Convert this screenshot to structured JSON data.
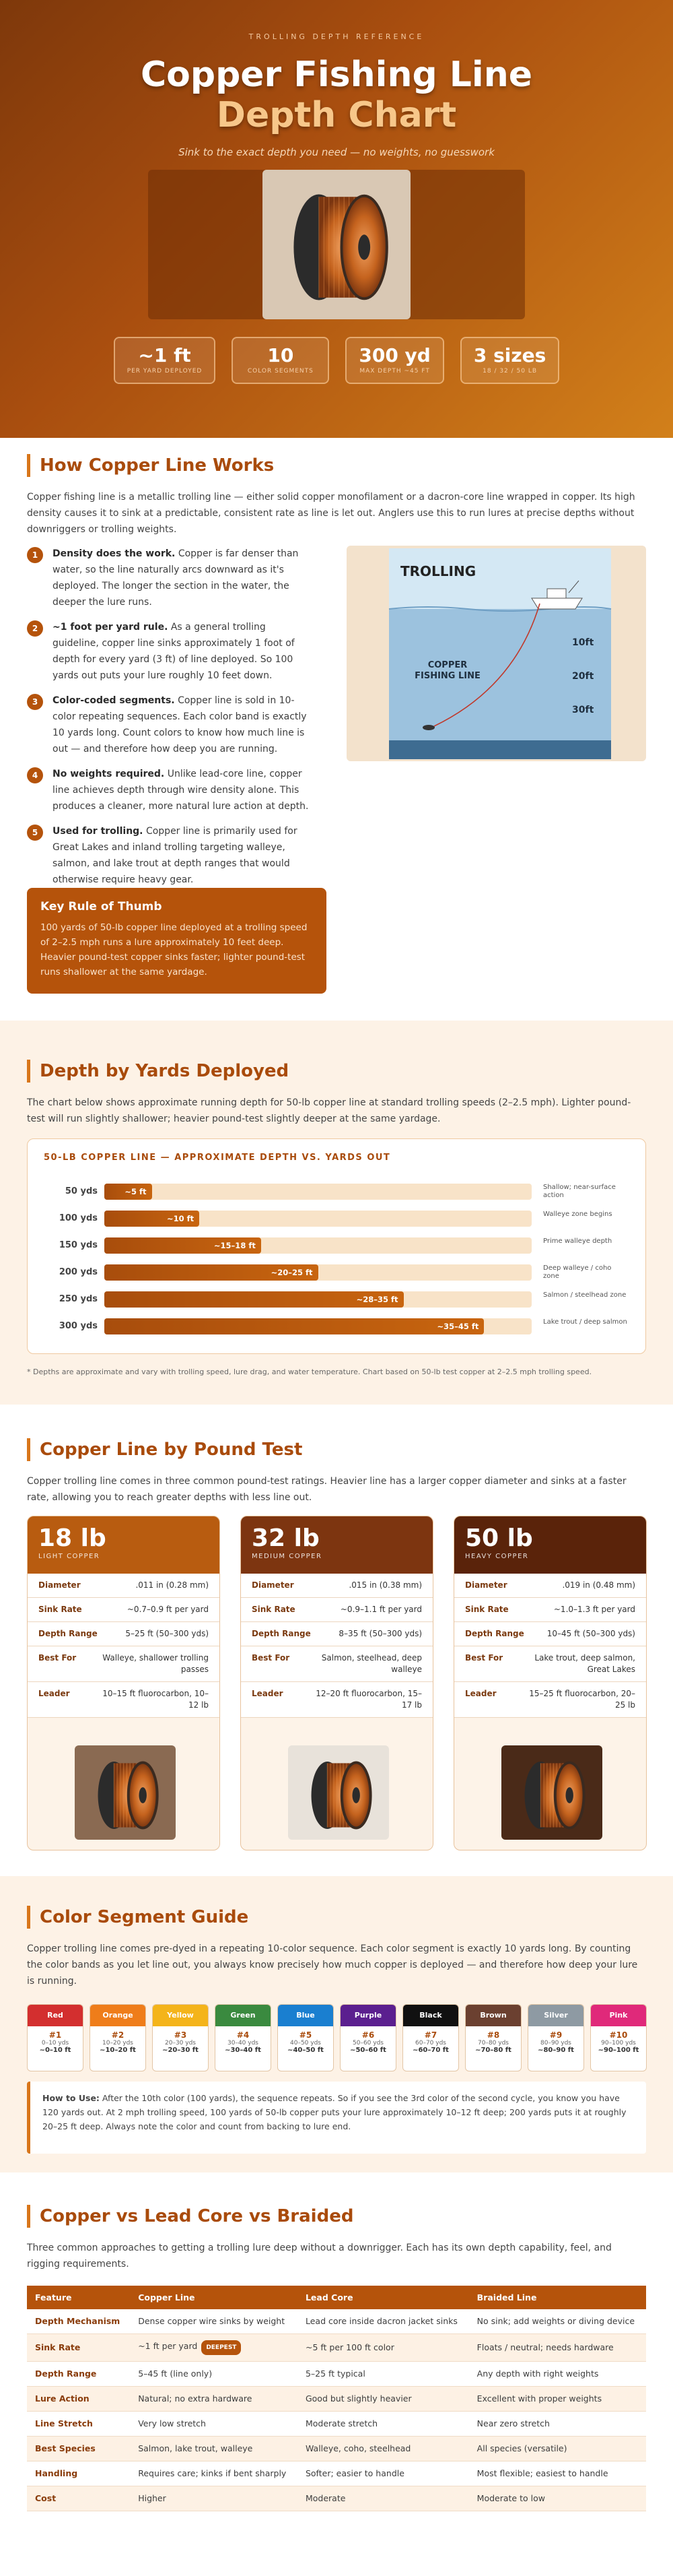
{
  "hero": {
    "eyebrow": "TROLLING DEPTH REFERENCE",
    "title_line1": "Copper Fishing Line",
    "title_line2": "Depth Chart",
    "tagline": "Sink to the exact depth you need — no weights, no guesswork",
    "stats": [
      {
        "value": "~1 ft",
        "label": "PER YARD DEPLOYED"
      },
      {
        "value": "10",
        "label": "COLOR SEGMENTS"
      },
      {
        "value": "300 yd",
        "label": "MAX DEPTH ~45 FT"
      },
      {
        "value": "3 sizes",
        "label": "18 / 32 / 50 LB"
      }
    ]
  },
  "how": {
    "title": "How Copper Line Works",
    "intro": "Copper fishing line is a metallic trolling line — either solid copper monofilament or a dacron-core line wrapped in copper. Its high density causes it to sink at a predictable, consistent rate as line is let out. Anglers use this to run lures at precise depths without downriggers or trolling weights.",
    "steps": [
      {
        "number": 1,
        "bold": "Density does the work.",
        "text": "Copper is far denser than water, so the line naturally arcs downward as it's deployed. The longer the section in the water, the deeper the lure runs."
      },
      {
        "number": 2,
        "bold": "~1 foot per yard rule.",
        "text": "As a general trolling guideline, copper line sinks approximately 1 foot of depth for every yard (3 ft) of line deployed. So 100 yards out puts your lure roughly 10 feet down."
      },
      {
        "number": 3,
        "bold": "Color-coded segments.",
        "text": "Copper line is sold in 10-color repeating sequences. Each color band is exactly 10 yards long. Count colors to know how much line is out — and therefore how deep you are running."
      },
      {
        "number": 4,
        "bold": "No weights required.",
        "text": "Unlike lead-core line, copper line achieves depth through wire density alone. This produces a cleaner, more natural lure action at depth."
      },
      {
        "number": 5,
        "bold": "Used for trolling.",
        "text": "Copper line is primarily used for Great Lakes and inland trolling targeting walleye, salmon, and lake trout at depth ranges that would otherwise require heavy gear."
      }
    ],
    "rule_title": "Key Rule of Thumb",
    "rule_text": "100 yards of 50-lb copper line deployed at a trolling speed of 2–2.5 mph runs a lure approximately 10 feet deep. Heavier pound-test copper sinks faster; lighter pound-test runs shallower at the same yardage.",
    "diagram": {
      "title": "TROLLING",
      "line_label": "COPPER FISHING LINE",
      "depths": [
        "10ft",
        "20ft",
        "30ft"
      ]
    }
  },
  "depth": {
    "title": "Depth by Yards Deployed",
    "intro": "The chart below shows approximate running depth for 50-lb copper line at standard trolling speeds (2–2.5 mph). Lighter pound-test will run slightly shallower; heavier pound-test slightly deeper at the same yardage.",
    "footnote": "* Depths are approximate and vary with trolling speed, lure drag, and water temperature. Chart based on 50-lb test copper at 2–2.5 mph trolling speed.",
    "chart_data": {
      "type": "bar",
      "title": "50-LB COPPER LINE — APPROXIMATE DEPTH VS. YARDS OUT",
      "categories": [
        "50 yds",
        "100 yds",
        "150 yds",
        "200 yds",
        "250 yds",
        "300 yds"
      ],
      "values": [
        5,
        10,
        16.5,
        22.5,
        31.5,
        40
      ],
      "value_labels": [
        "~5 ft",
        "~10 ft",
        "~15–18 ft",
        "~20–25 ft",
        "~28–35 ft",
        "~35–45 ft"
      ],
      "notes": [
        "Shallow; near-surface action",
        "Walleye zone begins",
        "Prime walleye depth",
        "Deep walleye / coho zone",
        "Salmon / steelhead zone",
        "Lake trout / deep salmon"
      ],
      "xlim": [
        0,
        45
      ],
      "color": "#c8650f"
    }
  },
  "pound_test": {
    "title": "Copper Line by Pound Test",
    "intro": "Copper trolling line comes in three common pound-test ratings. Heavier line has a larger copper diameter and sinks at a faster rate, allowing you to reach greater depths with less line out.",
    "row_labels": [
      "Diameter",
      "Sink Rate",
      "Depth Range",
      "Best For",
      "Leader"
    ],
    "cards": [
      {
        "weight": "18 lb",
        "grade": "LIGHT COPPER",
        "color": "#b85c10",
        "rows": [
          ".011 in (0.28 mm)",
          "~0.7–0.9 ft per yard",
          "5–25 ft (50–300 yds)",
          "Walleye, shallower trolling passes",
          "10–15 ft fluorocarbon, 10–12 lb"
        ]
      },
      {
        "weight": "32 lb",
        "grade": "MEDIUM COPPER",
        "color": "#7d3510",
        "rows": [
          ".015 in (0.38 mm)",
          "~0.9–1.1 ft per yard",
          "8–35 ft (50–300 yds)",
          "Salmon, steelhead, deep walleye",
          "12–20 ft fluorocarbon, 15–17 lb"
        ]
      },
      {
        "weight": "50 lb",
        "grade": "HEAVY COPPER",
        "color": "#5a230a",
        "rows": [
          ".019 in (0.48 mm)",
          "~1.0–1.3 ft per yard",
          "10–45 ft (50–300 yds)",
          "Lake trout, deep salmon, Great Lakes",
          "15–25 ft fluorocarbon, 20–25 lb"
        ]
      }
    ]
  },
  "colors": {
    "title": "Color Segment Guide",
    "intro": "Copper trolling line comes pre-dyed in a repeating 10-color sequence. Each color segment is exactly 10 yards long. By counting the color bands as you let line out, you always know precisely how much copper is deployed — and therefore how deep your lure is running.",
    "segments": [
      {
        "name": "Red",
        "color": "#d32f2f",
        "index": "#1",
        "yards": "0–10 yds",
        "depth": "~0–10 ft"
      },
      {
        "name": "Orange",
        "color": "#ef7d1a",
        "index": "#2",
        "yards": "10–20 yds",
        "depth": "~10–20 ft"
      },
      {
        "name": "Yellow",
        "color": "#f4b41a",
        "index": "#3",
        "yards": "20–30 yds",
        "depth": "~20–30 ft"
      },
      {
        "name": "Green",
        "color": "#3a8a3f",
        "index": "#4",
        "yards": "30–40 yds",
        "depth": "~30–40 ft"
      },
      {
        "name": "Blue",
        "color": "#1a7fd0",
        "index": "#5",
        "yards": "40–50 yds",
        "depth": "~40–50 ft"
      },
      {
        "name": "Purple",
        "color": "#5b1f8f",
        "index": "#6",
        "yards": "50–60 yds",
        "depth": "~50–60 ft"
      },
      {
        "name": "Black",
        "color": "#111111",
        "index": "#7",
        "yards": "60–70 yds",
        "depth": "~60–70 ft"
      },
      {
        "name": "Brown",
        "color": "#6b4030",
        "index": "#8",
        "yards": "70–80 yds",
        "depth": "~70–80 ft"
      },
      {
        "name": "Silver",
        "color": "#8e9aa3",
        "index": "#9",
        "yards": "80–90 yds",
        "depth": "~80–90 ft"
      },
      {
        "name": "Pink",
        "color": "#e0297a",
        "index": "#10",
        "yards": "90–100 yds",
        "depth": "~90–100 ft"
      }
    ],
    "note_bold": "How to Use:",
    "note_text": "After the 10th color (100 yards), the sequence repeats. So if you see the 3rd color of the second cycle, you know you have 120 yards out. At 2 mph trolling speed, 100 yards of 50-lb copper puts your lure approximately 10–12 ft deep; 200 yards puts it at roughly 20–25 ft deep. Always note the color and count from backing to lure end."
  },
  "compare": {
    "title": "Copper vs Lead Core vs Braided",
    "intro": "Three common approaches to getting a trolling lure deep without a downrigger. Each has its own depth capability, feel, and rigging requirements.",
    "header": [
      "Feature",
      "Copper Line",
      "Lead Core",
      "Braided Line"
    ],
    "rows": [
      [
        "Depth Mechanism",
        "Dense copper wire sinks by weight",
        "Lead core inside dacron jacket sinks",
        "No sink; add weights or diving device"
      ],
      [
        "Sink Rate",
        {
          "text": "~1 ft per yard",
          "badge": "DEEPEST"
        },
        "~5 ft per 100 ft color",
        "Floats / neutral; needs hardware"
      ],
      [
        "Depth Range",
        "5–45 ft (line only)",
        "5–25 ft typical",
        "Any depth with right weights"
      ],
      [
        "Lure Action",
        "Natural; no extra hardware",
        "Good but slightly heavier",
        "Excellent with proper weights"
      ],
      [
        "Line Stretch",
        "Very low stretch",
        "Moderate stretch",
        "Near zero stretch"
      ],
      [
        "Best Species",
        "Salmon, lake trout, walleye",
        "Walleye, coho, steelhead",
        "All species (versatile)"
      ],
      [
        "Handling",
        "Requires care; kinks if bent sharply",
        "Softer; easier to handle",
        "Most flexible; easiest to handle"
      ],
      [
        "Cost",
        "Higher",
        "Moderate",
        "Moderate to low"
      ]
    ]
  }
}
